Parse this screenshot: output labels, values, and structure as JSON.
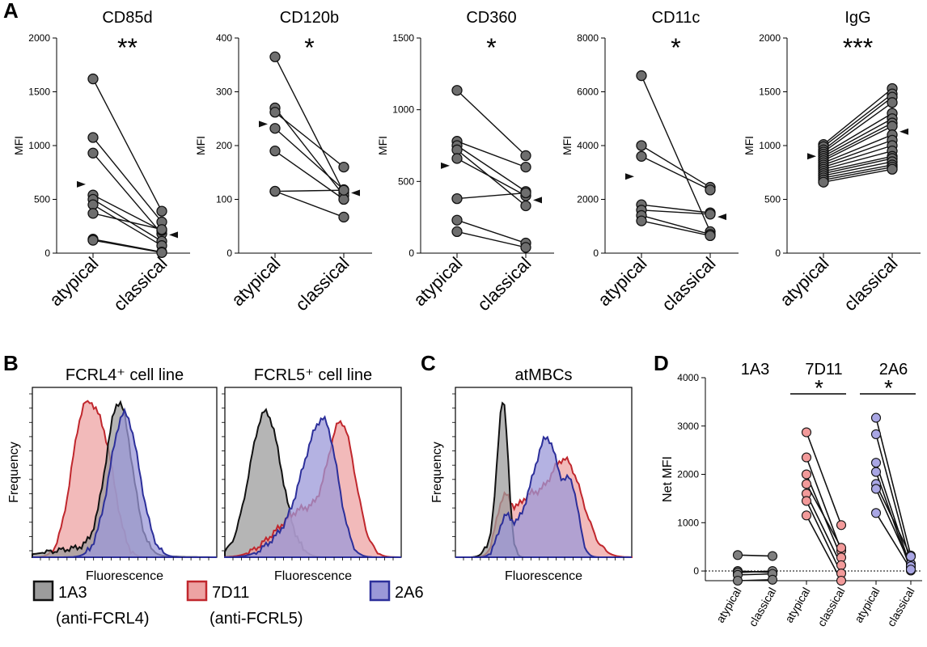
{
  "panels": {
    "A": "A",
    "B": "B",
    "C": "C",
    "D": "D"
  },
  "chart_data": [
    {
      "id": "CD85d",
      "type": "scatter",
      "title": "CD85d",
      "significance": "**",
      "ylabel": "MFI",
      "ylim": [
        0,
        2000
      ],
      "yticks": [
        0,
        500,
        1000,
        1500,
        2000
      ],
      "categories": [
        "atypical",
        "classical"
      ],
      "pairs": [
        [
          1620,
          390
        ],
        [
          1075,
          290
        ],
        [
          930,
          180
        ],
        [
          540,
          210
        ],
        [
          500,
          110
        ],
        [
          450,
          70
        ],
        [
          370,
          220
        ],
        [
          130,
          10
        ],
        [
          120,
          5
        ]
      ],
      "median_markers": {
        "atypical": 640,
        "classical": 170
      }
    },
    {
      "id": "CD120b",
      "type": "scatter",
      "title": "CD120b",
      "significance": "*",
      "ylabel": "MFI",
      "ylim": [
        0,
        400
      ],
      "yticks": [
        0,
        100,
        200,
        300,
        400
      ],
      "categories": [
        "atypical",
        "classical"
      ],
      "pairs": [
        [
          365,
          113
        ],
        [
          270,
          107
        ],
        [
          262,
          160
        ],
        [
          232,
          118
        ],
        [
          190,
          100
        ],
        [
          115,
          117
        ],
        [
          115,
          67
        ]
      ],
      "median_markers": {
        "atypical": 240,
        "classical": 112
      }
    },
    {
      "id": "CD360",
      "type": "scatter",
      "title": "CD360",
      "significance": "*",
      "ylabel": "MFI",
      "ylim": [
        0,
        1500
      ],
      "yticks": [
        0,
        500,
        1000,
        1500
      ],
      "categories": [
        "atypical",
        "classical"
      ],
      "pairs": [
        [
          1135,
          680
        ],
        [
          780,
          600
        ],
        [
          750,
          430
        ],
        [
          720,
          330
        ],
        [
          660,
          400
        ],
        [
          380,
          420
        ],
        [
          230,
          70
        ],
        [
          150,
          40
        ]
      ],
      "median_markers": {
        "atypical": 610,
        "classical": 370
      }
    },
    {
      "id": "CD11c",
      "type": "scatter",
      "title": "CD11c",
      "significance": "*",
      "ylabel": "MFI",
      "ylim": [
        0,
        8000
      ],
      "yticks": [
        0,
        2000,
        4000,
        6000,
        8000
      ],
      "categories": [
        "atypical",
        "classical"
      ],
      "pairs": [
        [
          6600,
          800
        ],
        [
          4000,
          2450
        ],
        [
          3600,
          2350
        ],
        [
          1800,
          1500
        ],
        [
          1600,
          1450
        ],
        [
          1400,
          700
        ],
        [
          1200,
          650
        ]
      ],
      "median_markers": {
        "atypical": 2850,
        "classical": 1350
      }
    },
    {
      "id": "IgG",
      "type": "scatter",
      "title": "IgG",
      "significance": "***",
      "ylabel": "MFI",
      "ylim": [
        0,
        2000
      ],
      "yticks": [
        0,
        500,
        1000,
        1500,
        2000
      ],
      "categories": [
        "atypical",
        "classical"
      ],
      "pairs": [
        [
          1010,
          1530
        ],
        [
          990,
          1480
        ],
        [
          960,
          1450
        ],
        [
          940,
          1400
        ],
        [
          920,
          1300
        ],
        [
          900,
          1250
        ],
        [
          880,
          1210
        ],
        [
          860,
          1180
        ],
        [
          840,
          1100
        ],
        [
          820,
          1050
        ],
        [
          800,
          1000
        ],
        [
          780,
          950
        ],
        [
          760,
          900
        ],
        [
          740,
          880
        ],
        [
          720,
          850
        ],
        [
          700,
          820
        ],
        [
          680,
          800
        ],
        [
          660,
          780
        ]
      ],
      "median_markers": {
        "atypical": 900,
        "classical": 1130
      }
    },
    {
      "id": "FCRL4",
      "type": "area",
      "title": "FCRL4⁺ cell line",
      "xlabel": "Fluorescence",
      "ylabel": "Frequency",
      "series": [
        "1A3",
        "7D11",
        "2A6"
      ]
    },
    {
      "id": "FCRL5",
      "type": "area",
      "title": "FCRL5⁺ cell line",
      "xlabel": "Fluorescence",
      "ylabel": "Frequency",
      "series": [
        "1A3",
        "7D11",
        "2A6"
      ]
    },
    {
      "id": "atMBCs",
      "type": "area",
      "title": "atMBCs",
      "xlabel": "Fluorescence",
      "ylabel": "Frequency",
      "series": [
        "1A3",
        "7D11",
        "2A6"
      ]
    },
    {
      "id": "NetMFI",
      "type": "scatter",
      "ylabel": "Net MFI",
      "ylim": [
        -200,
        4000
      ],
      "yticks": [
        0,
        1000,
        2000,
        3000,
        4000
      ],
      "groups": [
        {
          "name": "1A3",
          "significance": "",
          "color": "#7f7f7f",
          "pairs": [
            [
              330,
              310
            ],
            [
              0,
              -30
            ],
            [
              -30,
              0
            ],
            [
              -80,
              -60
            ],
            [
              -200,
              -180
            ]
          ]
        },
        {
          "name": "7D11",
          "significance": "*",
          "color": "#f29a9a",
          "pairs": [
            [
              2870,
              950
            ],
            [
              2350,
              420
            ],
            [
              2000,
              280
            ],
            [
              1800,
              480
            ],
            [
              1600,
              120
            ],
            [
              1450,
              -50
            ],
            [
              1150,
              -200
            ]
          ]
        },
        {
          "name": "2A6",
          "significance": "*",
          "color": "#a9a6e4",
          "pairs": [
            [
              3170,
              320
            ],
            [
              2830,
              150
            ],
            [
              2240,
              60
            ],
            [
              2050,
              10
            ],
            [
              1800,
              300
            ],
            [
              1700,
              100
            ],
            [
              1200,
              30
            ]
          ]
        }
      ],
      "categories": [
        "atypical",
        "classical"
      ]
    }
  ],
  "legend": [
    {
      "name": "1A3",
      "sub": "(anti-FCRL4)",
      "stroke": "#111111",
      "fill": "#9c9c9c"
    },
    {
      "name": "7D11",
      "sub": "(anti-FCRL5)",
      "stroke": "#c0272d",
      "fill": "#eda3a3"
    },
    {
      "name": "2A6",
      "sub": "",
      "stroke": "#2c2f9a",
      "fill": "#9b98d8"
    }
  ]
}
